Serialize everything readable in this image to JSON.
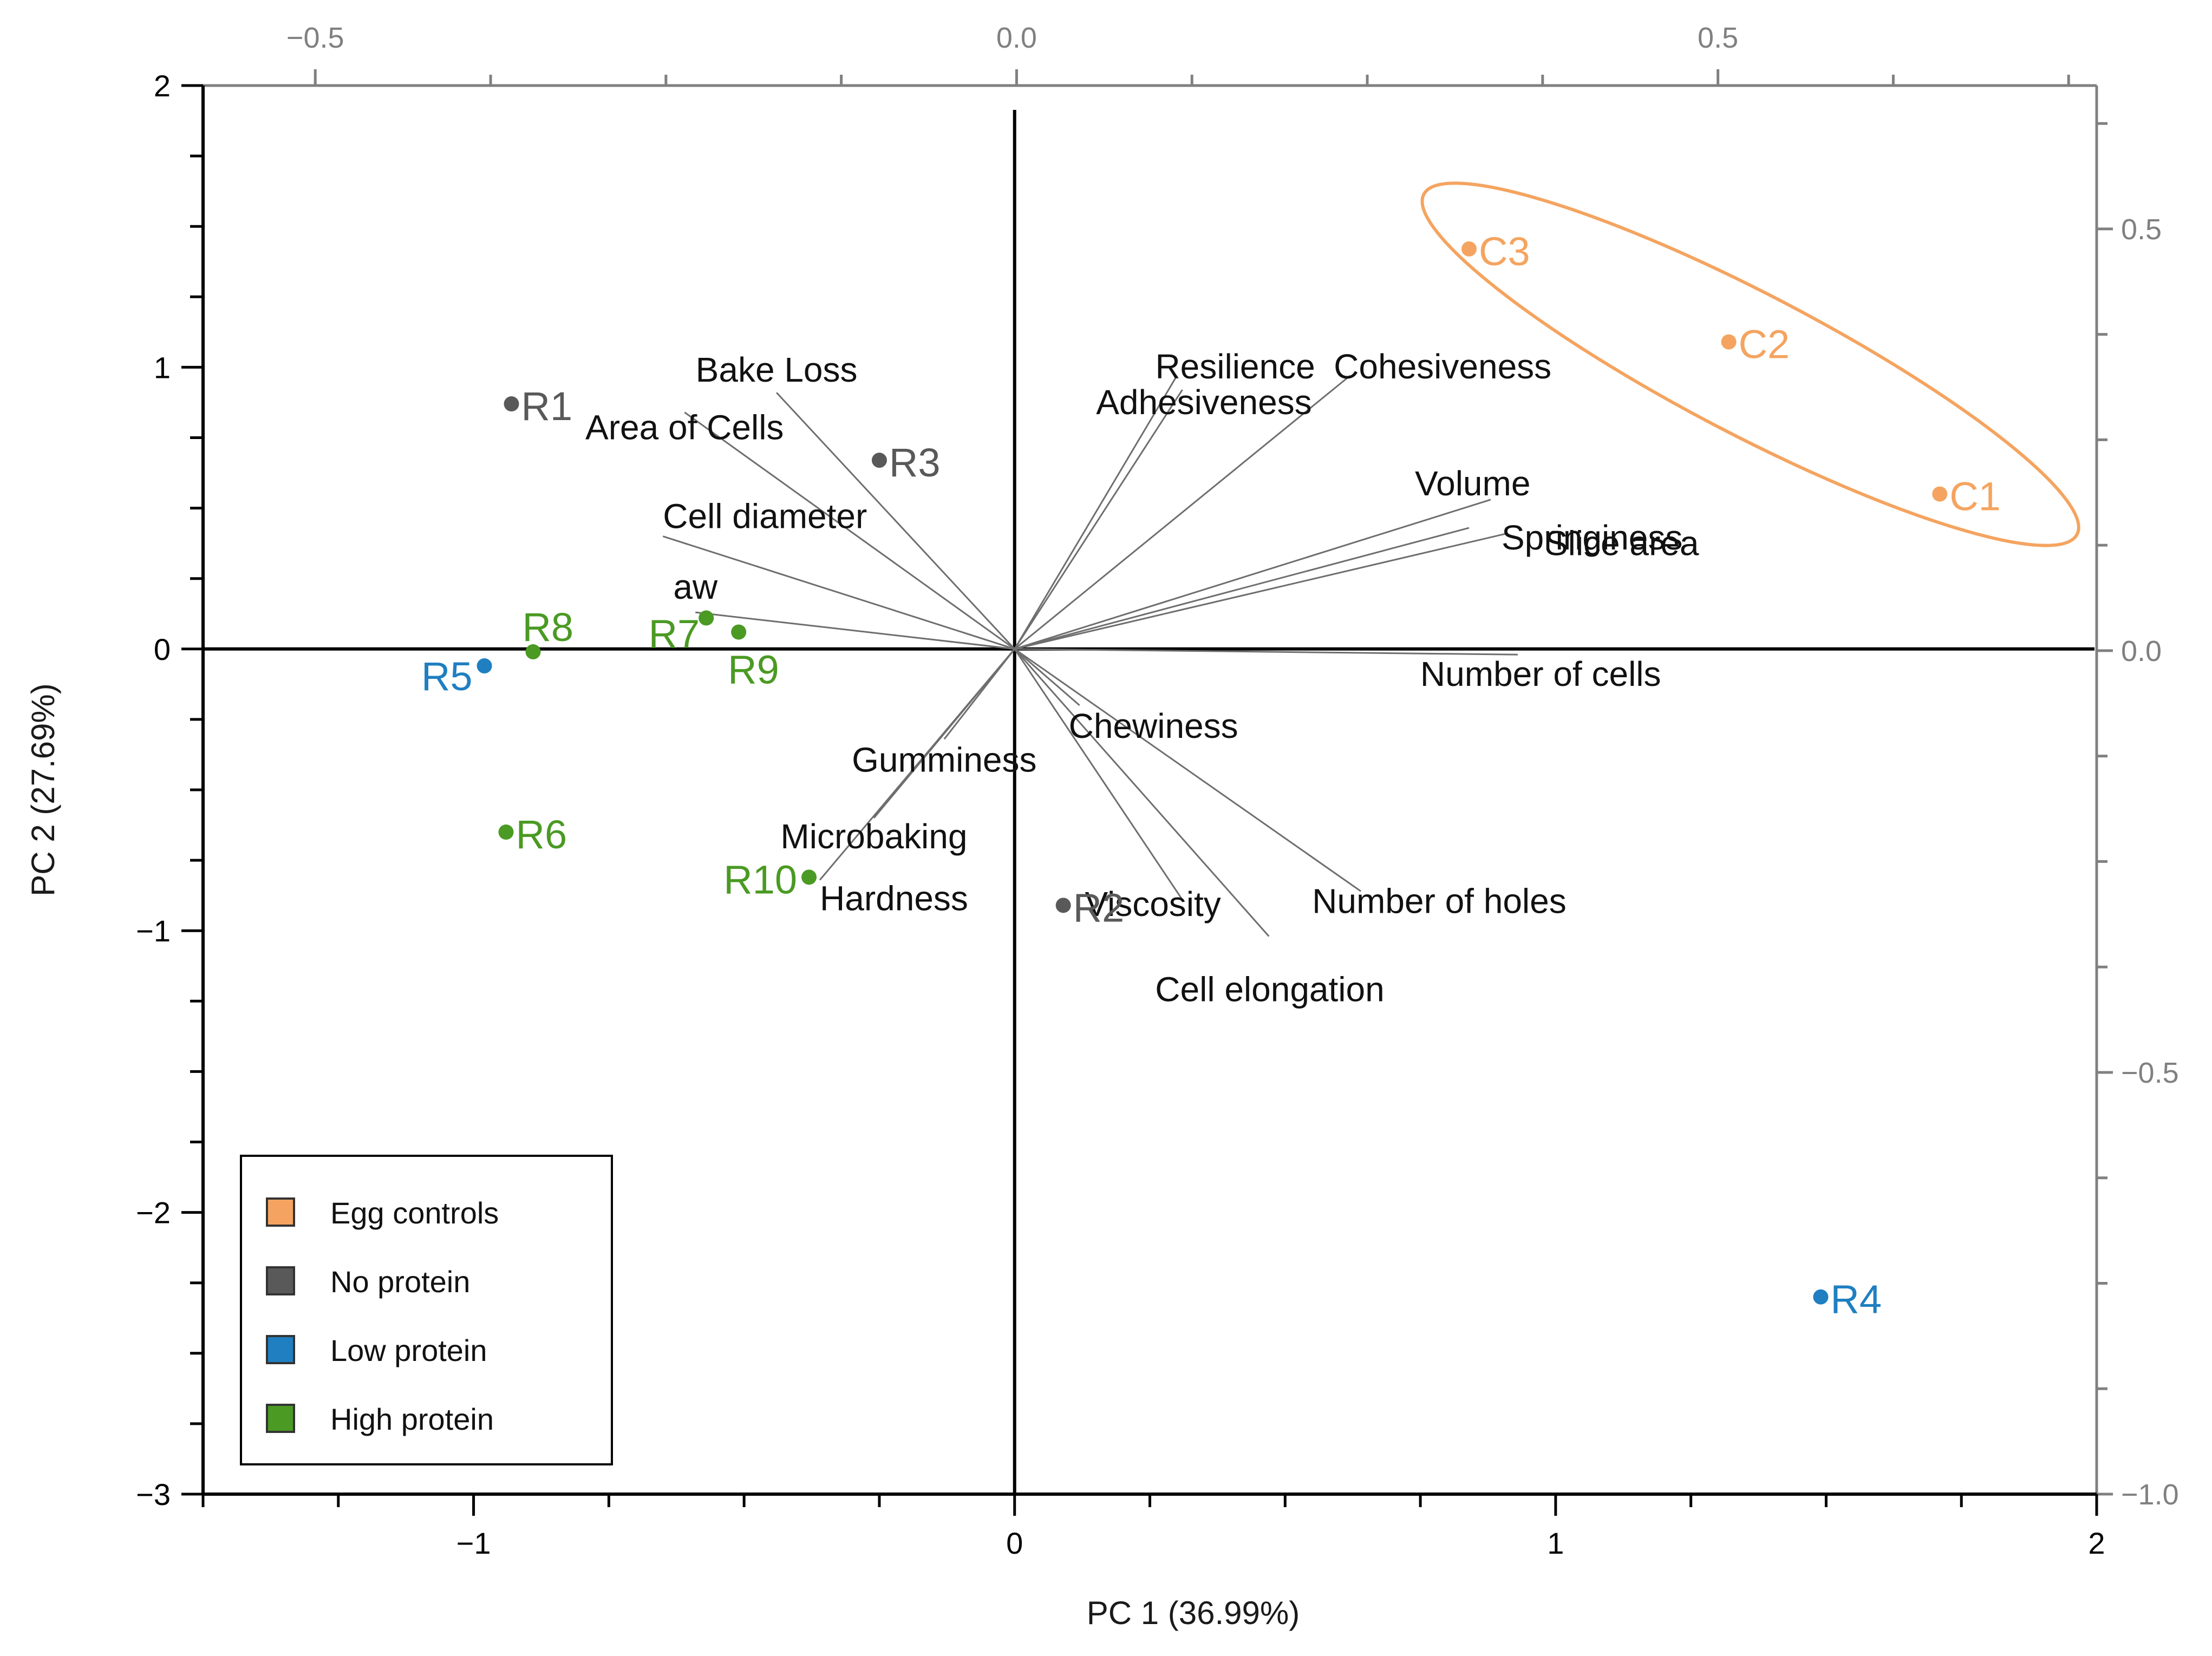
{
  "chart_data": {
    "type": "scatter",
    "subtype": "biplot",
    "title": "",
    "xlabel": "PC 1 (36.99%)",
    "ylabel": "PC 2 (27.69%)",
    "xlim": [
      -1.5,
      2
    ],
    "ylim": [
      -3,
      2
    ],
    "x_ticks": [
      -1,
      0,
      1,
      2
    ],
    "x_tick_labels": [
      "−1",
      "0",
      "1",
      "2"
    ],
    "y_ticks": [
      2,
      1,
      0,
      -1,
      -2,
      -3
    ],
    "y_tick_labels": [
      "2",
      "1",
      "0",
      "−1",
      "−2",
      "−3"
    ],
    "secondary_x": {
      "lim": [
        -0.58,
        0.77
      ],
      "ticks": [
        -0.5,
        0,
        0.5
      ],
      "tick_labels": [
        "−0.5",
        "0.0",
        "0.5"
      ]
    },
    "secondary_y": {
      "lim": [
        -1.0,
        0.67
      ],
      "ticks": [
        0.5,
        0,
        -0.5,
        -1.0
      ],
      "tick_labels": [
        "0.5",
        "0.0",
        "−0.5",
        "−1.0"
      ]
    },
    "colors": {
      "egg": "#F4A460",
      "none": "#595959",
      "low": "#1F7FC1",
      "high": "#4A9A23",
      "loading": "#6E6E6E",
      "axis": "#000000",
      "axis2": "#808080"
    },
    "legend": {
      "position": "bottom-left",
      "entries": [
        {
          "label": "Egg controls",
          "group": "egg"
        },
        {
          "label": "No protein",
          "group": "none"
        },
        {
          "label": "Low protein",
          "group": "low"
        },
        {
          "label": "High protein",
          "group": "high"
        }
      ]
    },
    "samples": [
      {
        "name": "C1",
        "group": "egg",
        "x": 1.71,
        "y": 0.55
      },
      {
        "name": "C2",
        "group": "egg",
        "x": 1.32,
        "y": 1.09
      },
      {
        "name": "C3",
        "group": "egg",
        "x": 0.84,
        "y": 1.42
      },
      {
        "name": "R1",
        "group": "none",
        "x": -0.93,
        "y": 0.87
      },
      {
        "name": "R2",
        "group": "none",
        "x": 0.09,
        "y": -0.91
      },
      {
        "name": "R3",
        "group": "none",
        "x": -0.25,
        "y": 0.67
      },
      {
        "name": "R4",
        "group": "low",
        "x": 1.49,
        "y": -2.3
      },
      {
        "name": "R5",
        "group": "low",
        "x": -0.98,
        "y": -0.06
      },
      {
        "name": "R6",
        "group": "high",
        "x": -0.94,
        "y": -0.65
      },
      {
        "name": "R7",
        "group": "high",
        "x": -0.57,
        "y": 0.11
      },
      {
        "name": "R8",
        "group": "high",
        "x": -0.89,
        "y": -0.01
      },
      {
        "name": "R9",
        "group": "high",
        "x": -0.51,
        "y": 0.06
      },
      {
        "name": "R10",
        "group": "high",
        "x": -0.38,
        "y": -0.81
      }
    ],
    "loadings": [
      {
        "name": "Bake Loss",
        "x": -0.44,
        "y": 0.91
      },
      {
        "name": "Area of Cells",
        "x": -0.61,
        "y": 0.84
      },
      {
        "name": "Cell diameter",
        "x": -0.65,
        "y": 0.4
      },
      {
        "name": "aw",
        "x": -0.59,
        "y": 0.13
      },
      {
        "name": "Adhesiveness",
        "x": 0.31,
        "y": 0.92
      },
      {
        "name": "Resilience",
        "x": 0.3,
        "y": 0.97
      },
      {
        "name": "Cohesiveness",
        "x": 0.62,
        "y": 0.97
      },
      {
        "name": "Volume",
        "x": 0.88,
        "y": 0.53
      },
      {
        "name": "Springiness",
        "x": 0.84,
        "y": 0.43
      },
      {
        "name": "Slice area",
        "x": 0.91,
        "y": 0.41
      },
      {
        "name": "Number of cells",
        "x": 0.93,
        "y": -0.02
      },
      {
        "name": "Chewiness",
        "x": 0.12,
        "y": -0.2
      },
      {
        "name": "Gumminess",
        "x": -0.13,
        "y": -0.32
      },
      {
        "name": "Microbaking",
        "x": -0.26,
        "y": -0.6
      },
      {
        "name": "Hardness",
        "x": -0.36,
        "y": -0.82
      },
      {
        "name": "Number of holes",
        "x": 0.64,
        "y": -0.86
      },
      {
        "name": "Viscosity",
        "x": 0.31,
        "y": -0.89
      },
      {
        "name": "Cell elongation",
        "x": 0.47,
        "y": -1.02
      }
    ],
    "annotation": {
      "type": "ellipse",
      "group": "egg",
      "encloses": [
        "C1",
        "C2",
        "C3"
      ]
    }
  }
}
